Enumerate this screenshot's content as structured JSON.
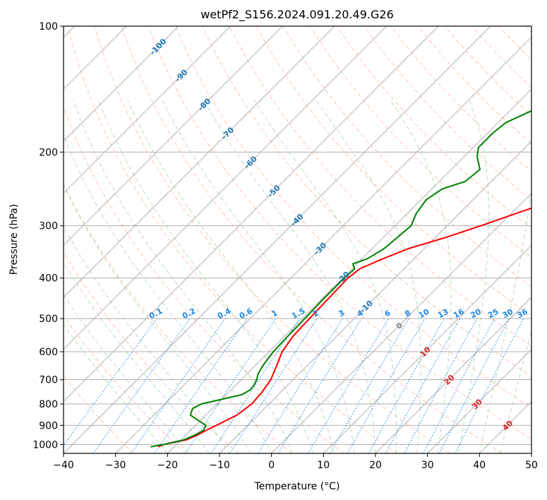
{
  "chart_data": {
    "type": "line",
    "subtype": "skew-T log-P diagram",
    "title": "wetPf2_S156.2024.091.20.49.G26",
    "xlabel": "Temperature (°C)",
    "ylabel": "Pressure (hPa)",
    "xlim": [
      -40,
      50
    ],
    "ylim": [
      1050,
      100
    ],
    "y_scale": "log",
    "grid": true,
    "x_ticks": [
      -40,
      -30,
      -20,
      -10,
      0,
      10,
      20,
      30,
      40,
      50
    ],
    "y_ticks": [
      1000,
      900,
      800,
      700,
      600,
      500,
      400,
      300,
      200,
      100
    ],
    "isotherm_labels": [
      -100,
      -90,
      -80,
      -70,
      -60,
      -50,
      -40,
      -30,
      -20,
      -10,
      0,
      10,
      20,
      30,
      40
    ],
    "mixing_ratio_labels": [
      "0.1",
      "0.2",
      "0.4",
      "0.6",
      "1",
      "1.5",
      "2",
      "3",
      "4",
      "6",
      "8",
      "10",
      "13",
      "16",
      "20",
      "25",
      "30",
      "36"
    ],
    "colors": {
      "temperature": "#ff0000",
      "dewpoint": "#008000",
      "isotherm_label": "#1f77b4",
      "mixing_ratio": "#1e88e5",
      "dry_adiabat": "#ff7f50",
      "moist_adiabat": "#4caf50",
      "hot_label": "#d62728",
      "zero_label": "#808080",
      "grid": "#b0b0b0"
    },
    "series": [
      {
        "name": "Temperature",
        "points": [
          [
            1013,
            -23.0
          ],
          [
            1000,
            -22.5
          ],
          [
            975,
            -19.0
          ],
          [
            950,
            -17.8
          ],
          [
            925,
            -17.0
          ],
          [
            900,
            -16.0
          ],
          [
            850,
            -14.0
          ],
          [
            800,
            -13.3
          ],
          [
            750,
            -13.6
          ],
          [
            700,
            -14.3
          ],
          [
            650,
            -15.8
          ],
          [
            600,
            -17.5
          ],
          [
            550,
            -18.4
          ],
          [
            500,
            -18.6
          ],
          [
            450,
            -18.8
          ],
          [
            400,
            -19.0
          ],
          [
            380,
            -18.5
          ],
          [
            360,
            -16.0
          ],
          [
            340,
            -13.0
          ],
          [
            320,
            -8.0
          ],
          [
            300,
            -3.5
          ],
          [
            280,
            1.0
          ],
          [
            260,
            6.0
          ],
          [
            240,
            10.0
          ],
          [
            220,
            16.0
          ],
          [
            200,
            21.0
          ],
          [
            180,
            24.0
          ],
          [
            160,
            28.0
          ],
          [
            140,
            33.0
          ],
          [
            120,
            38.0
          ],
          [
            110,
            41.0
          ],
          [
            100,
            43.0
          ]
        ]
      },
      {
        "name": "Dewpoint",
        "points": [
          [
            1013,
            -24.5
          ],
          [
            1000,
            -22.5
          ],
          [
            975,
            -19.5
          ],
          [
            950,
            -18.3
          ],
          [
            925,
            -17.5
          ],
          [
            900,
            -18.0
          ],
          [
            875,
            -20.5
          ],
          [
            850,
            -23.0
          ],
          [
            820,
            -23.8
          ],
          [
            800,
            -23.0
          ],
          [
            780,
            -20.0
          ],
          [
            760,
            -17.0
          ],
          [
            740,
            -16.3
          ],
          [
            720,
            -16.5
          ],
          [
            700,
            -17.0
          ],
          [
            680,
            -17.8
          ],
          [
            650,
            -18.5
          ],
          [
            600,
            -19.2
          ],
          [
            550,
            -19.4
          ],
          [
            500,
            -19.5
          ],
          [
            450,
            -19.7
          ],
          [
            400,
            -19.7
          ],
          [
            380,
            -19.5
          ],
          [
            370,
            -20.8
          ],
          [
            360,
            -19.0
          ],
          [
            340,
            -17.7
          ],
          [
            320,
            -17.3
          ],
          [
            300,
            -16.9
          ],
          [
            280,
            -18.3
          ],
          [
            260,
            -19.0
          ],
          [
            245,
            -18.0
          ],
          [
            235,
            -15.0
          ],
          [
            220,
            -14.5
          ],
          [
            205,
            -17.5
          ],
          [
            195,
            -19.0
          ],
          [
            180,
            -19.0
          ],
          [
            170,
            -18.5
          ],
          [
            160,
            -16.0
          ],
          [
            150,
            -13.0
          ],
          [
            140,
            -10.0
          ],
          [
            125,
            -6.5
          ],
          [
            110,
            -5.0
          ],
          [
            100,
            -1.5
          ]
        ]
      }
    ]
  }
}
